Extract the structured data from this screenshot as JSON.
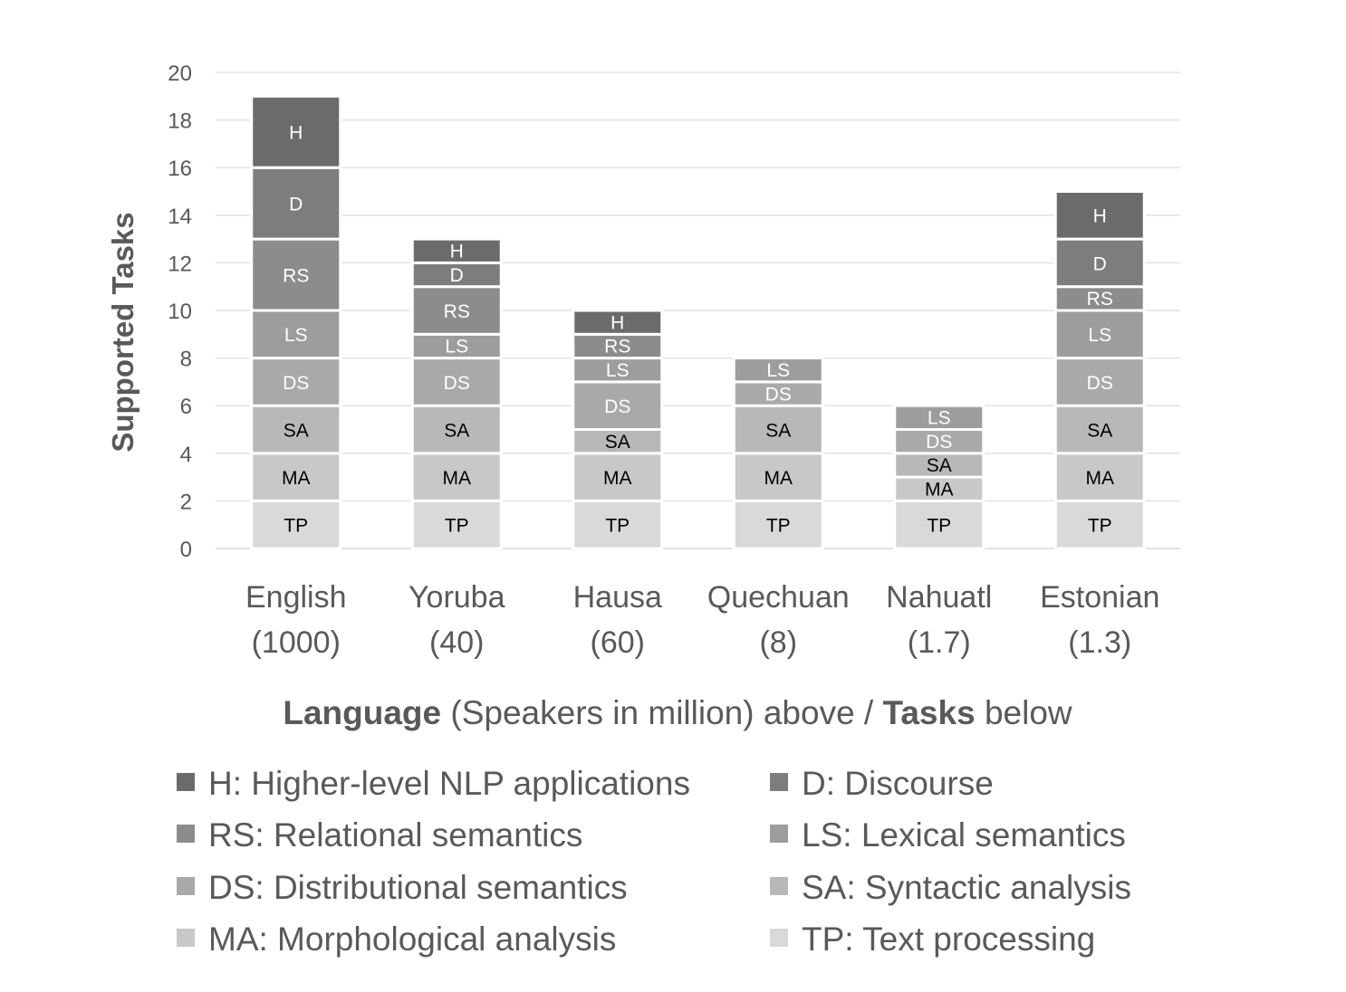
{
  "chart_data": {
    "type": "bar",
    "stacked": true,
    "categories": [
      "English",
      "Yoruba",
      "Hausa",
      "Quechuan",
      "Nahuatl",
      "Estonian"
    ],
    "category_sublabels": [
      "(1000)",
      "(40)",
      "(60)",
      "(8)",
      "(1.7)",
      "(1.3)"
    ],
    "series": [
      {
        "name": "TP",
        "values": [
          2,
          2,
          2,
          2,
          2,
          2
        ]
      },
      {
        "name": "MA",
        "values": [
          2,
          2,
          2,
          2,
          1,
          2
        ]
      },
      {
        "name": "SA",
        "values": [
          2,
          2,
          1,
          2,
          1,
          2
        ]
      },
      {
        "name": "DS",
        "values": [
          2,
          2,
          2,
          1,
          1,
          2
        ]
      },
      {
        "name": "LS",
        "values": [
          2,
          1,
          1,
          1,
          1,
          2
        ]
      },
      {
        "name": "RS",
        "values": [
          3,
          2,
          1,
          0,
          0,
          1
        ]
      },
      {
        "name": "D",
        "values": [
          3,
          1,
          0,
          0,
          0,
          2
        ]
      },
      {
        "name": "H",
        "values": [
          3,
          1,
          1,
          0,
          0,
          2
        ]
      }
    ],
    "series_colors": {
      "TP": "#d9d9d9",
      "MA": "#c8c8c8",
      "SA": "#b8b8b8",
      "DS": "#a9a9a9",
      "LS": "#9d9d9d",
      "RS": "#8c8c8c",
      "D": "#7d7d7d",
      "H": "#6b6b6b"
    },
    "label_colors": {
      "TP": "#000000",
      "MA": "#000000",
      "SA": "#000000",
      "DS": "#ffffff",
      "LS": "#ffffff",
      "RS": "#ffffff",
      "D": "#ffffff",
      "H": "#ffffff"
    },
    "ylabel": "Supported Tasks",
    "xlabel_parts": [
      {
        "text": "Language",
        "bold": true
      },
      {
        "text": " (Speakers in million) above / ",
        "bold": false
      },
      {
        "text": "Tasks",
        "bold": true
      },
      {
        "text": " below",
        "bold": false
      }
    ],
    "ylim": [
      0,
      20
    ],
    "yticks": [
      0,
      2,
      4,
      6,
      8,
      10,
      12,
      14,
      16,
      18,
      20
    ],
    "grid": true,
    "legend": [
      {
        "key": "H",
        "label": "H: Higher-level NLP applications"
      },
      {
        "key": "D",
        "label": "D: Discourse"
      },
      {
        "key": "RS",
        "label": "RS: Relational semantics"
      },
      {
        "key": "LS",
        "label": "LS: Lexical semantics"
      },
      {
        "key": "DS",
        "label": "DS: Distributional semantics"
      },
      {
        "key": "SA",
        "label": "SA: Syntactic analysis"
      },
      {
        "key": "MA",
        "label": "MA: Morphological analysis"
      },
      {
        "key": "TP",
        "label": "TP: Text processing"
      }
    ],
    "legend_placement": "bottom"
  }
}
